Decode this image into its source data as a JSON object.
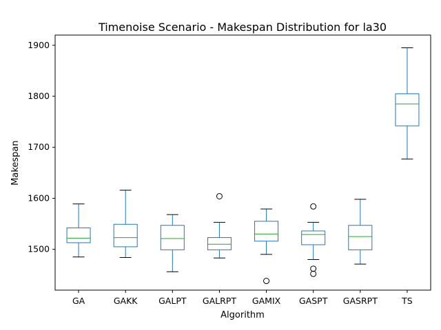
{
  "chart_data": {
    "type": "box",
    "title": "Timenoise Scenario - Makespan Distribution for la30",
    "xlabel": "Algorithm",
    "ylabel": "Makespan",
    "ylim": [
      1420,
      1920
    ],
    "yticks": [
      1500,
      1600,
      1700,
      1800,
      1900
    ],
    "grid": false,
    "categories": [
      "GA",
      "GAKK",
      "GALPT",
      "GALRPT",
      "GAMIX",
      "GASPT",
      "GASRPT",
      "TS"
    ],
    "boxes": [
      {
        "category": "GA",
        "whisker_low": 1485,
        "q1": 1513,
        "median": 1522,
        "q3": 1542,
        "whisker_high": 1589,
        "outliers": []
      },
      {
        "category": "GAKK",
        "whisker_low": 1484,
        "q1": 1505,
        "median": 1523,
        "q3": 1549,
        "whisker_high": 1616,
        "outliers": []
      },
      {
        "category": "GALPT",
        "whisker_low": 1456,
        "q1": 1499,
        "median": 1521,
        "q3": 1547,
        "whisker_high": 1568,
        "outliers": []
      },
      {
        "category": "GALRPT",
        "whisker_low": 1483,
        "q1": 1499,
        "median": 1510,
        "q3": 1523,
        "whisker_high": 1553,
        "outliers": [
          1604
        ]
      },
      {
        "category": "GAMIX",
        "whisker_low": 1490,
        "q1": 1516,
        "median": 1530,
        "q3": 1555,
        "whisker_high": 1579,
        "outliers": [
          1438
        ]
      },
      {
        "category": "GASPT",
        "whisker_low": 1480,
        "q1": 1509,
        "median": 1529,
        "q3": 1536,
        "whisker_high": 1553,
        "outliers": [
          1584,
          1462,
          1452
        ]
      },
      {
        "category": "GASRPT",
        "whisker_low": 1471,
        "q1": 1499,
        "median": 1525,
        "q3": 1547,
        "whisker_high": 1598,
        "outliers": []
      },
      {
        "category": "TS",
        "whisker_low": 1677,
        "q1": 1742,
        "median": 1785,
        "q3": 1805,
        "whisker_high": 1895,
        "outliers": []
      }
    ],
    "colors": {
      "box": "#1f77b4",
      "median": "#2ca02c",
      "whisker": "#1f77b4",
      "cap": "#000000",
      "outlier": "#000000"
    }
  }
}
